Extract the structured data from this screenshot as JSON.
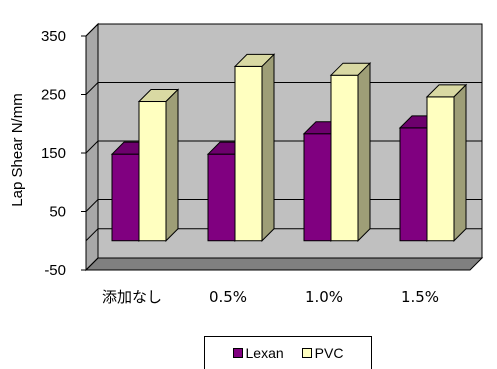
{
  "chart_data": {
    "type": "bar",
    "categories": [
      "添加なし",
      "0.5%",
      "1.0%",
      "1.5%"
    ],
    "series": [
      {
        "name": "Lexan",
        "values": [
          148,
          148,
          183,
          193
        ],
        "color": "#800080"
      },
      {
        "name": "PVC",
        "values": [
          238,
          298,
          283,
          246
        ],
        "color": "#FFFFC0"
      }
    ],
    "ylabel": "Lap Shear N/mm",
    "xlabel": "",
    "ylim": [
      -50,
      350
    ],
    "yticks": [
      "-50",
      "50",
      "150",
      "250",
      "350"
    ],
    "grid": true,
    "legend_position": "bottom",
    "style": "3d-bar"
  }
}
